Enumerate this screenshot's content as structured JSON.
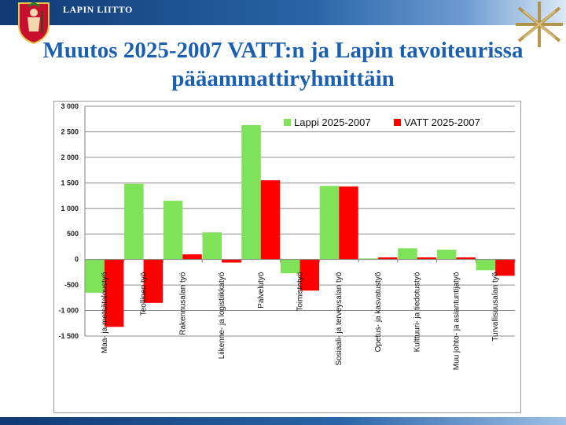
{
  "header": {
    "org_name": "LAPIN LIITTO"
  },
  "slide": {
    "title_line1": "Muutos 2025-2007 VATT:n ja Lapin tavoiteurissa",
    "title_line2": "pääammattiryhmittäin"
  },
  "colors": {
    "lappi": "#7fe35a",
    "vatt": "#ff0000",
    "title": "#1a5fb0"
  },
  "chart_data": {
    "type": "bar",
    "legend_position": "top-right",
    "grid": true,
    "ylim": [
      -1500,
      3000
    ],
    "yticks": [
      3000,
      2500,
      2000,
      1500,
      1000,
      500,
      0,
      -500,
      -1000,
      -1500
    ],
    "ytick_labels": [
      "3 000",
      "2 500",
      "2 000",
      "1 500",
      "1 000",
      "500",
      "0",
      "-500",
      "-1 000",
      "-1 500"
    ],
    "categories": [
      "Maa- ja metsätaloustyö",
      "Teollinen työ",
      "Rakennusalan työ",
      "Liikenne- ja logistiikkatyö",
      "Palvelutyö",
      "Toimistotyö",
      "Sosiaali- ja terveysalan työ",
      "Opetus- ja kasvatustyö",
      "Kulttuuri- ja tiedotustyö",
      "Muu johto- ja asiantuntijatyö",
      "Turvallisuusalan työ"
    ],
    "series": [
      {
        "name": "Lappi 2025-2007",
        "color": "#7fe35a",
        "values": [
          -650,
          1480,
          1150,
          530,
          2630,
          -270,
          1440,
          20,
          220,
          190,
          -210
        ]
      },
      {
        "name": "VATT 2025-2007",
        "color": "#ff0000",
        "values": [
          -1320,
          -850,
          100,
          -60,
          1550,
          -610,
          1430,
          40,
          40,
          40,
          -320
        ]
      }
    ]
  }
}
